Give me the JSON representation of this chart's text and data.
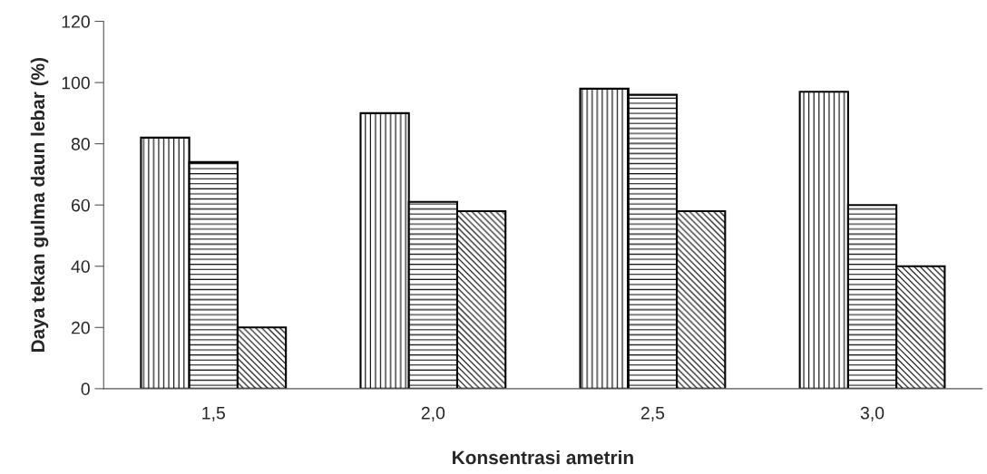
{
  "chart_data": {
    "type": "bar",
    "xlabel": "Konsentrasi ametrin",
    "ylabel": "Daya tekan gulma daun lebar (%)",
    "categories": [
      "1,5",
      "2,0",
      "2,5",
      "3,0"
    ],
    "series": [
      {
        "color": "#000000",
        "values": [
          82,
          90,
          98,
          97
        ]
      },
      {
        "color": "#000000",
        "values": [
          74,
          61,
          96,
          60
        ]
      },
      {
        "color": "#000000",
        "values": [
          20,
          58,
          58,
          40
        ]
      }
    ],
    "ylim": [
      0,
      120
    ],
    "yticks": [
      0,
      20,
      40,
      60,
      80,
      100,
      120
    ],
    "grid": false,
    "legend": false
  }
}
